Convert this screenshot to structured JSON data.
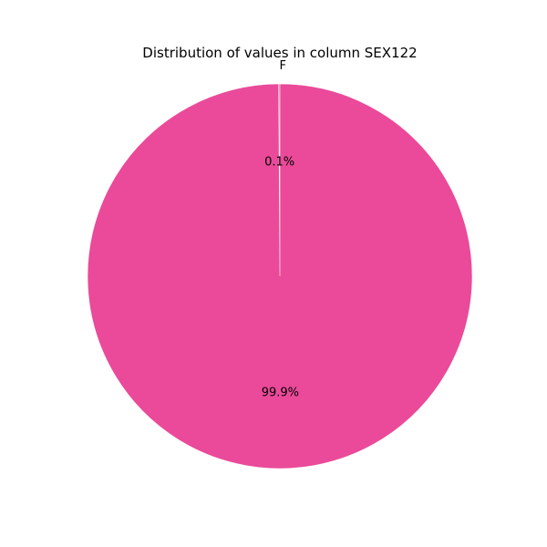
{
  "chart_data": {
    "type": "pie",
    "title": "Distribution of values in column SEX122",
    "slices": [
      {
        "label": "F",
        "value": 0.1,
        "pct_label": "0.1%",
        "color": "#ea4a99"
      },
      {
        "label": "",
        "value": 99.9,
        "pct_label": "99.9%",
        "color": "#ea4a99"
      }
    ],
    "start_angle": "top",
    "direction": "counterclockwise",
    "edge_color": "#ffffff"
  }
}
